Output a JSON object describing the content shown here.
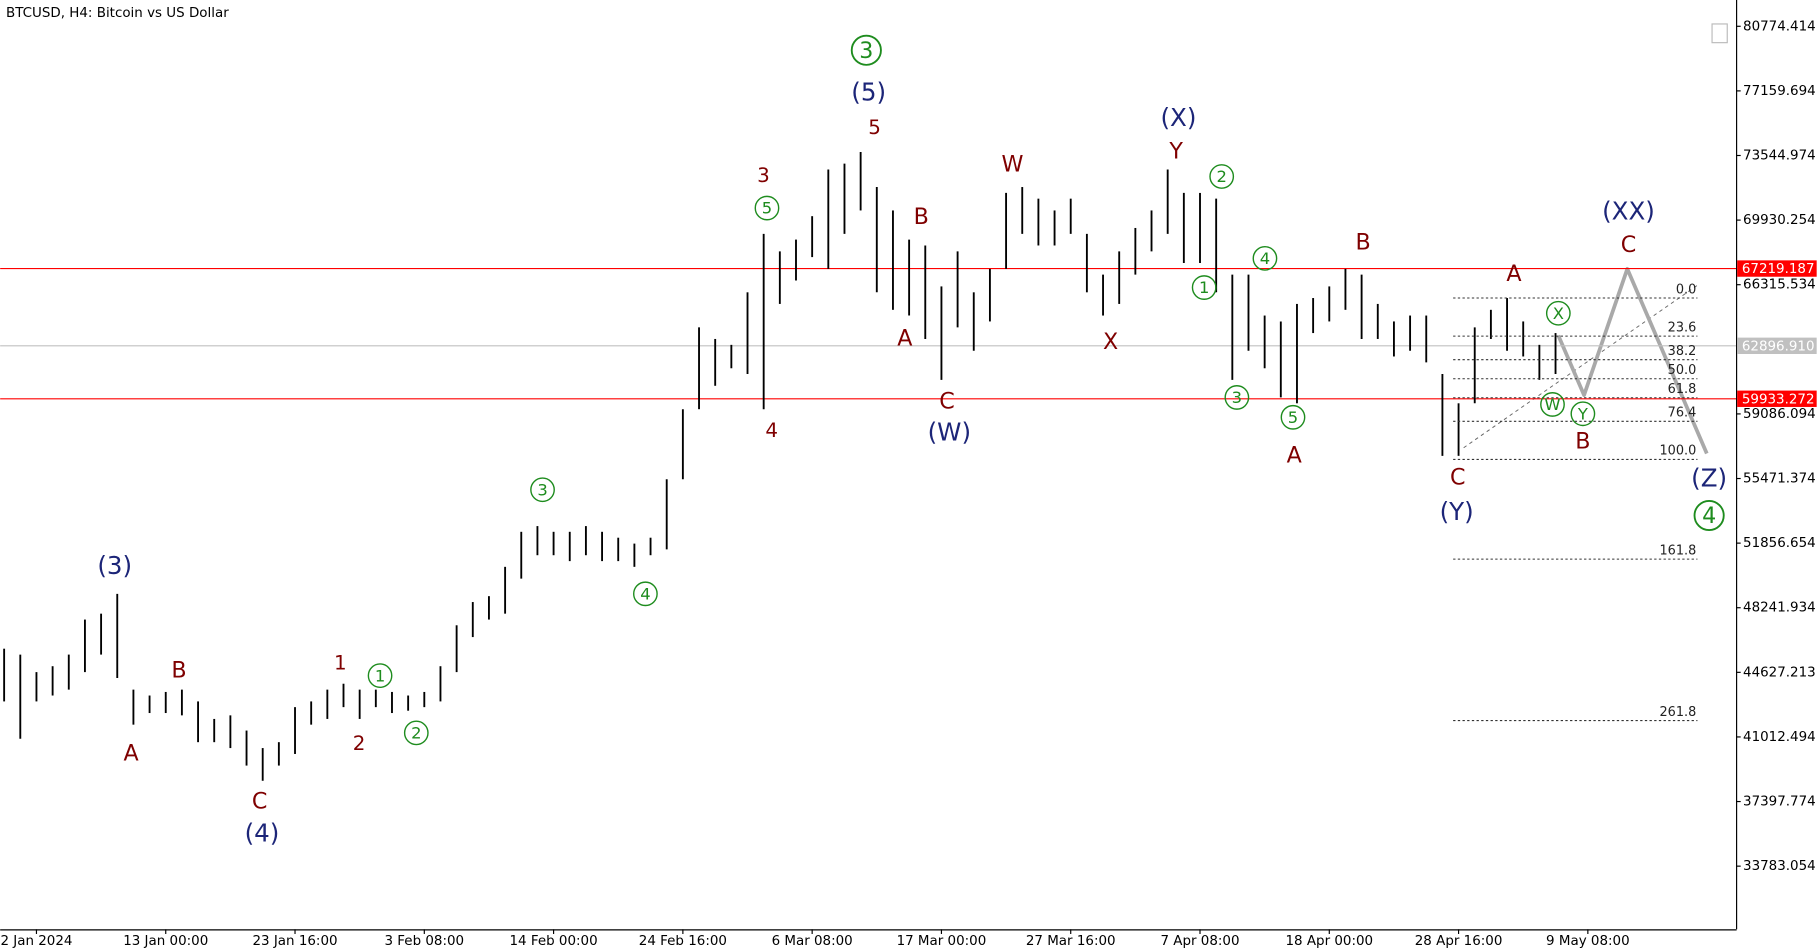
{
  "chart_data": {
    "type": "hilo",
    "title": "BTCUSD, H4:  Bitcoin vs US Dollar",
    "color": "#000000",
    "categories": [
      null,
      null,
      "2 Jan 2024",
      null,
      null,
      null,
      null,
      null,
      null,
      null,
      "13 Jan 00:00",
      null,
      null,
      null,
      null,
      null,
      null,
      null,
      "23 Jan 16:00",
      null,
      null,
      null,
      null,
      null,
      null,
      null,
      "3 Feb 08:00",
      null,
      null,
      null,
      null,
      null,
      null,
      null,
      "14 Feb 00:00",
      null,
      null,
      null,
      null,
      null,
      null,
      null,
      "24 Feb 16:00",
      null,
      null,
      null,
      null,
      null,
      null,
      null,
      "6 Mar 08:00",
      null,
      null,
      null,
      null,
      null,
      null,
      null,
      "17 Mar 00:00",
      null,
      null,
      null,
      null,
      null,
      null,
      null,
      "27 Mar 16:00",
      null,
      null,
      null,
      null,
      null,
      null,
      null,
      "7 Apr 08:00",
      null,
      null,
      null,
      null,
      null,
      null,
      null,
      "18 Apr 00:00",
      null,
      null,
      null,
      null,
      null,
      null,
      null,
      "28 Apr 16:00",
      null,
      null,
      null,
      null,
      null,
      null,
      null,
      "9 May 08:00",
      null,
      null,
      null,
      null,
      null,
      null,
      null
    ],
    "high": [
      45950,
      45620,
      44640,
      44970,
      45620,
      47580,
      47910,
      49020,
      43660,
      43330,
      43530,
      43660,
      43000,
      42020,
      42220,
      41370,
      40390,
      40720,
      42680,
      43000,
      43660,
      43990,
      43660,
      43660,
      43530,
      43330,
      43530,
      44970,
      47260,
      48560,
      48890,
      50530,
      52490,
      52810,
      52490,
      52490,
      52810,
      52490,
      52160,
      51830,
      52160,
      55430,
      59350,
      63930,
      63280,
      62950,
      65890,
      69160,
      68180,
      68840,
      70150,
      72760,
      73090,
      73740,
      71780,
      70470,
      68840,
      68510,
      66220,
      68180,
      65890,
      67200,
      71450,
      71780,
      71130,
      70470,
      71130,
      69160,
      66880,
      68180,
      69490,
      70470,
      72760,
      71450,
      71450,
      71130,
      66880,
      66880,
      64590,
      64260,
      65240,
      65570,
      66220,
      67200,
      66880,
      65240,
      64260,
      64590,
      64590,
      61320,
      59680,
      63930,
      64910,
      65570,
      64260,
      62950,
      63610,
      null,
      null,
      null,
      null,
      null,
      null,
      null,
      null,
      null
    ],
    "low": [
      43000,
      40910,
      43000,
      43330,
      43660,
      44640,
      45620,
      44310,
      41700,
      42350,
      42350,
      42220,
      40720,
      40720,
      40390,
      39410,
      38560,
      39410,
      40060,
      41700,
      42020,
      42680,
      42020,
      42680,
      42350,
      42480,
      42680,
      43000,
      44640,
      46600,
      47580,
      47910,
      49870,
      51180,
      51180,
      50850,
      51180,
      50850,
      50850,
      50530,
      51180,
      51510,
      55430,
      59350,
      60660,
      61640,
      61320,
      59350,
      65240,
      66550,
      67860,
      67200,
      69160,
      70470,
      65890,
      64910,
      64590,
      63280,
      60990,
      63930,
      62620,
      64260,
      67200,
      69160,
      68510,
      68510,
      69160,
      65890,
      64590,
      65240,
      66880,
      68180,
      69160,
      67530,
      67530,
      65890,
      60990,
      62620,
      61640,
      60010,
      59680,
      63610,
      64260,
      64910,
      63280,
      63280,
      62300,
      62620,
      61970,
      56740,
      56740,
      59680,
      63280,
      62620,
      62300,
      60990,
      61320,
      null,
      null,
      null,
      null,
      null,
      null,
      null,
      null,
      null
    ],
    "ylim": [
      30250,
      82245
    ],
    "yticks": [
      33783.054,
      37397.774,
      41012.494,
      44627.213,
      48241.934,
      51856.654,
      55471.374,
      59086.094,
      66315.534,
      69930.254,
      73544.974,
      77159.694,
      80774.414
    ],
    "levels": [
      {
        "price": 67219.187,
        "color": "#ff0000"
      },
      {
        "price": {
          "value": 62896.91,
          "label": "62896.910"
        },
        "color": "#c0c0c0"
      },
      {
        "price": 59933.272,
        "color": "#ff0000"
      }
    ],
    "fib": {
      "start": 65570,
      "end": 56540,
      "levels": [
        {
          "value": 0,
          "label": "0.0"
        },
        23.6,
        38.2,
        {
          "value": 50,
          "label": "50.0"
        },
        61.8,
        76.4,
        {
          "value": 100,
          "label": "100.0"
        },
        161.8,
        261.8
      ]
    },
    "annotations": [
      {
        "text": "(3)",
        "color": "#1c2578"
      },
      {
        "text": "B",
        "color": "#7f0000"
      },
      {
        "text": "A",
        "color": "#7f0000"
      },
      {
        "text": "C",
        "color": "#7f0000"
      },
      {
        "text": "(4)",
        "color": "#1c2578"
      },
      {
        "text": "1",
        "color": "#7f0000"
      },
      {
        "text": "2",
        "color": "#7f0000"
      },
      {
        "text": "1",
        "color": "#1e8c1e",
        "circled": true
      },
      {
        "text": "2",
        "color": "#1e8c1e",
        "circled": true
      },
      {
        "text": "3",
        "color": "#1e8c1e",
        "circled": true
      },
      {
        "text": "4",
        "color": "#1e8c1e",
        "circled": true
      },
      {
        "text": "3",
        "color": "#7f0000"
      },
      {
        "text": "5",
        "color": "#1e8c1e",
        "circled": true
      },
      {
        "text": "4",
        "color": "#7f0000"
      },
      {
        "text": "3",
        "color": "#1e8c1e",
        "circled": true
      },
      {
        "text": "(5)",
        "color": "#1c2578"
      },
      {
        "text": "5",
        "color": "#7f0000"
      },
      {
        "text": "B",
        "color": "#7f0000"
      },
      {
        "text": "A",
        "color": "#7f0000"
      },
      {
        "text": "C",
        "color": "#7f0000"
      },
      {
        "text": "(W)",
        "color": "#1c2578"
      },
      {
        "text": "W",
        "color": "#7f0000"
      },
      {
        "text": "X",
        "color": "#7f0000"
      },
      {
        "text": "(X)",
        "color": "#1c2578"
      },
      {
        "text": "Y",
        "color": "#7f0000"
      },
      {
        "text": "2",
        "color": "#1e8c1e",
        "circled": true
      },
      {
        "text": "1",
        "color": "#1e8c1e",
        "circled": true
      },
      {
        "text": "4",
        "color": "#1e8c1e",
        "circled": true
      },
      {
        "text": "3",
        "color": "#1e8c1e",
        "circled": true
      },
      {
        "text": "5",
        "color": "#1e8c1e",
        "circled": true
      },
      {
        "text": "A",
        "color": "#7f0000"
      },
      {
        "text": "B",
        "color": "#7f0000"
      },
      {
        "text": "C",
        "color": "#7f0000"
      },
      {
        "text": "(Y)",
        "color": "#1c2578"
      },
      {
        "text": "A",
        "color": "#7f0000"
      },
      {
        "text": "X",
        "color": "#1e8c1e",
        "circled": true
      },
      {
        "text": "W",
        "color": "#1e8c1e",
        "circled": true
      },
      {
        "text": "Y",
        "color": "#1e8c1e",
        "circled": true
      },
      {
        "text": "B",
        "color": "#7f0000"
      },
      {
        "text": "(XX)",
        "color": "#1c2578"
      },
      {
        "text": "C",
        "color": "#7f0000"
      },
      {
        "text": "(Z)",
        "color": "#1c2578"
      },
      {
        "text": "4",
        "color": "#1e8c1e",
        "circled": true
      }
    ]
  }
}
